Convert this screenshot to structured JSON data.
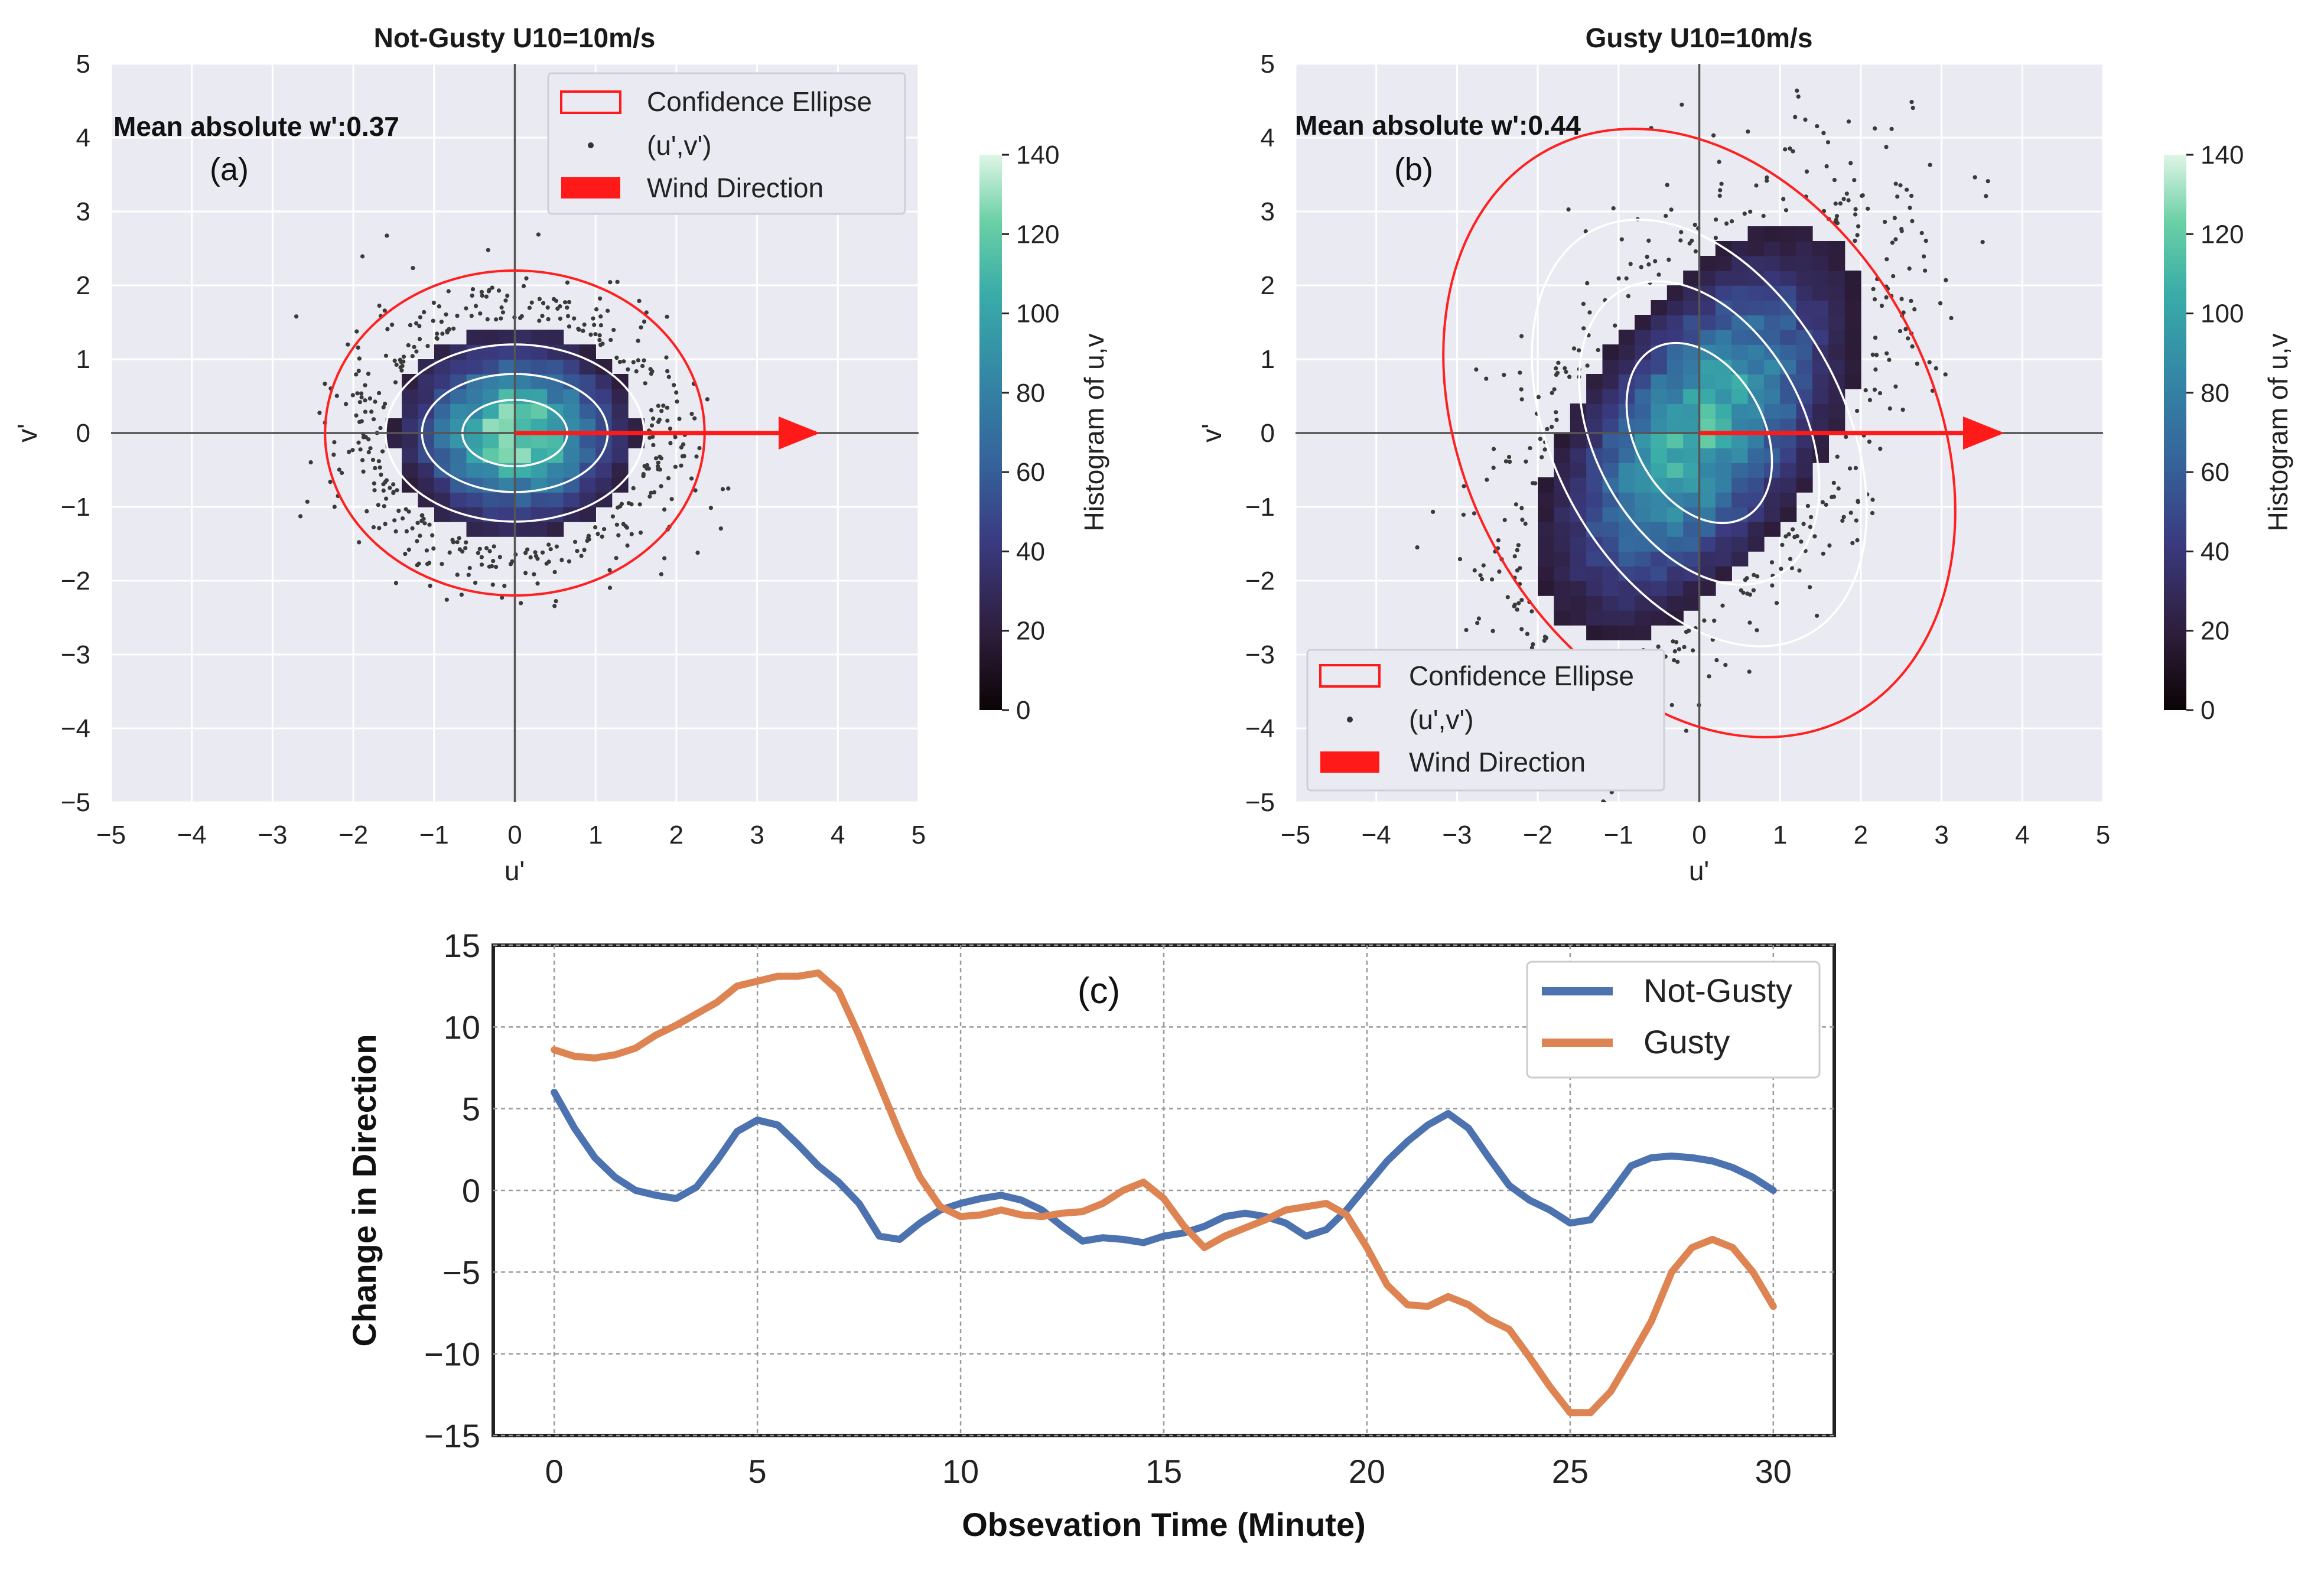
{
  "chart_data": [
    {
      "type": "scatter",
      "panel_label": "(a)",
      "title": "Not-Gusty U10=10m/s",
      "annotation": "Mean absolute w':0.37",
      "xlabel": "u'",
      "ylabel": "v'",
      "xlim": [
        -5,
        5
      ],
      "ylim": [
        -5,
        5
      ],
      "xticks": [
        "−5",
        "−4",
        "−3",
        "−2",
        "−1",
        "0",
        "1",
        "2",
        "3",
        "4",
        "5"
      ],
      "yticks": [
        "−5",
        "−4",
        "−3",
        "−2",
        "−1",
        "0",
        "1",
        "2",
        "3",
        "4",
        "5"
      ],
      "legend": [
        "Confidence Ellipse",
        "(u',v')",
        "Wind Direction"
      ],
      "legend_position": "top-right",
      "colorbar": {
        "label": "Histogram of u,v",
        "range": [
          0,
          140
        ],
        "ticks": [
          "0",
          "20",
          "40",
          "60",
          "80",
          "100",
          "120",
          "140"
        ]
      },
      "ellipse": {
        "center": [
          0,
          0
        ],
        "semi_x": 2.35,
        "semi_y": 2.2,
        "angle_deg": 0
      },
      "wind_direction": {
        "from": [
          0,
          0
        ],
        "to": [
          3.8,
          0
        ]
      },
      "scatter_spread": {
        "center": [
          0,
          0
        ],
        "std_x": 0.8,
        "std_y": 0.75,
        "corr": 0
      },
      "contours": [
        {
          "semi_x": 0.65,
          "semi_y": 0.45
        },
        {
          "semi_x": 1.15,
          "semi_y": 0.8
        },
        {
          "semi_x": 1.6,
          "semi_y": 1.2
        }
      ]
    },
    {
      "type": "scatter",
      "panel_label": "(b)",
      "title": "Gusty U10=10m/s",
      "annotation": "Mean absolute w':0.44",
      "xlabel": "u'",
      "ylabel": "v'",
      "xlim": [
        -5,
        5
      ],
      "ylim": [
        -5,
        5
      ],
      "xticks": [
        "−5",
        "−4",
        "−3",
        "−2",
        "−1",
        "0",
        "1",
        "2",
        "3",
        "4",
        "5"
      ],
      "yticks": [
        "−5",
        "−4",
        "−3",
        "−2",
        "−1",
        "0",
        "1",
        "2",
        "3",
        "4",
        "5"
      ],
      "legend": [
        "Confidence Ellipse",
        "(u',v')",
        "Wind Direction"
      ],
      "legend_position": "bottom-left",
      "colorbar": {
        "label": "Histogram of u,v",
        "range": [
          0,
          140
        ],
        "ticks": [
          "0",
          "20",
          "40",
          "60",
          "80",
          "100",
          "120",
          "140"
        ]
      },
      "ellipse": {
        "center": [
          0,
          0
        ],
        "semi_x": 2.9,
        "semi_y": 4.35,
        "angle_deg": -28
      },
      "wind_direction": {
        "from": [
          0,
          0
        ],
        "to": [
          3.8,
          0
        ]
      },
      "scatter_spread": {
        "center": [
          0,
          0
        ],
        "std_x": 1.05,
        "std_y": 1.45,
        "corr": 0.55
      },
      "contours": [
        {
          "semi_x": 0.8,
          "semi_y": 1.3
        },
        {
          "semi_x": 1.3,
          "semi_y": 2.2
        },
        {
          "semi_x": 1.8,
          "semi_y": 3.1
        }
      ]
    },
    {
      "type": "line",
      "panel_label": "(c)",
      "xlabel": "Obsevation Time (Minute)",
      "ylabel": "Change in Direction",
      "xlim": [
        -1.5,
        31.5
      ],
      "ylim": [
        -15,
        15
      ],
      "xticks": [
        0,
        5,
        10,
        15,
        20,
        25,
        30
      ],
      "yticks": [
        -15,
        -10,
        -5,
        0,
        5,
        10,
        15
      ],
      "legend_position": "top-right",
      "series": [
        {
          "name": "Not-Gusty",
          "color": "#4c72b0",
          "x": [
            0,
            0.5,
            1,
            1.5,
            2,
            2.5,
            3,
            3.5,
            4,
            4.5,
            5,
            5.5,
            6,
            6.5,
            7,
            7.5,
            8,
            8.5,
            9,
            9.5,
            10,
            10.5,
            11,
            11.5,
            12,
            12.5,
            13,
            13.5,
            14,
            14.5,
            15,
            15.5,
            16,
            16.5,
            17,
            17.5,
            18,
            18.5,
            19,
            19.5,
            20,
            20.5,
            21,
            21.5,
            22,
            22.5,
            23,
            23.5,
            24,
            24.5,
            25,
            25.5,
            26,
            26.5,
            27,
            27.5,
            28,
            28.5,
            29,
            29.5,
            30
          ],
          "y": [
            6,
            3.8,
            2,
            0.8,
            0,
            -0.3,
            -0.5,
            0.2,
            1.8,
            3.6,
            4.3,
            4,
            2.8,
            1.5,
            0.5,
            -0.8,
            -2.8,
            -3,
            -2,
            -1.2,
            -0.8,
            -0.5,
            -0.3,
            -0.6,
            -1.2,
            -2.2,
            -3.1,
            -2.9,
            -3,
            -3.2,
            -2.8,
            -2.6,
            -2.2,
            -1.6,
            -1.4,
            -1.6,
            -2,
            -2.8,
            -2.4,
            -1.2,
            0.3,
            1.8,
            3,
            4,
            4.7,
            3.8,
            2,
            0.3,
            -0.6,
            -1.2,
            -2,
            -1.8,
            -0.2,
            1.5,
            2,
            2.1,
            2,
            1.8,
            1.4,
            0.8,
            0
          ]
        },
        {
          "name": "Gusty",
          "color": "#dd8452",
          "x": [
            0,
            0.5,
            1,
            1.5,
            2,
            2.5,
            3,
            3.5,
            4,
            4.5,
            5,
            5.5,
            6,
            6.5,
            7,
            7.5,
            8,
            8.5,
            9,
            9.5,
            10,
            10.5,
            11,
            11.5,
            12,
            12.5,
            13,
            13.5,
            14,
            14.5,
            15,
            15.5,
            16,
            16.5,
            17,
            17.5,
            18,
            18.5,
            19,
            19.5,
            20,
            20.5,
            21,
            21.5,
            22,
            22.5,
            23,
            23.5,
            24,
            24.5,
            25,
            25.5,
            26,
            26.5,
            27,
            27.5,
            28,
            28.5,
            29,
            29.5,
            30
          ],
          "y": [
            8.6,
            8.2,
            8.1,
            8.3,
            8.7,
            9.5,
            10.1,
            10.8,
            11.5,
            12.5,
            12.8,
            13.1,
            13.1,
            13.3,
            12.2,
            9.5,
            6.5,
            3.5,
            0.8,
            -1,
            -1.6,
            -1.5,
            -1.2,
            -1.5,
            -1.6,
            -1.4,
            -1.3,
            -0.8,
            0,
            0.5,
            -0.5,
            -2.2,
            -3.5,
            -2.8,
            -2.3,
            -1.8,
            -1.2,
            -1,
            -0.8,
            -1.5,
            -3.5,
            -5.8,
            -7,
            -7.1,
            -6.5,
            -7,
            -7.9,
            -8.5,
            -10.2,
            -12,
            -13.6,
            -13.6,
            -12.3,
            -10.2,
            -8,
            -5,
            -3.5,
            -3,
            -3.5,
            -5,
            -7.1
          ]
        }
      ]
    }
  ]
}
